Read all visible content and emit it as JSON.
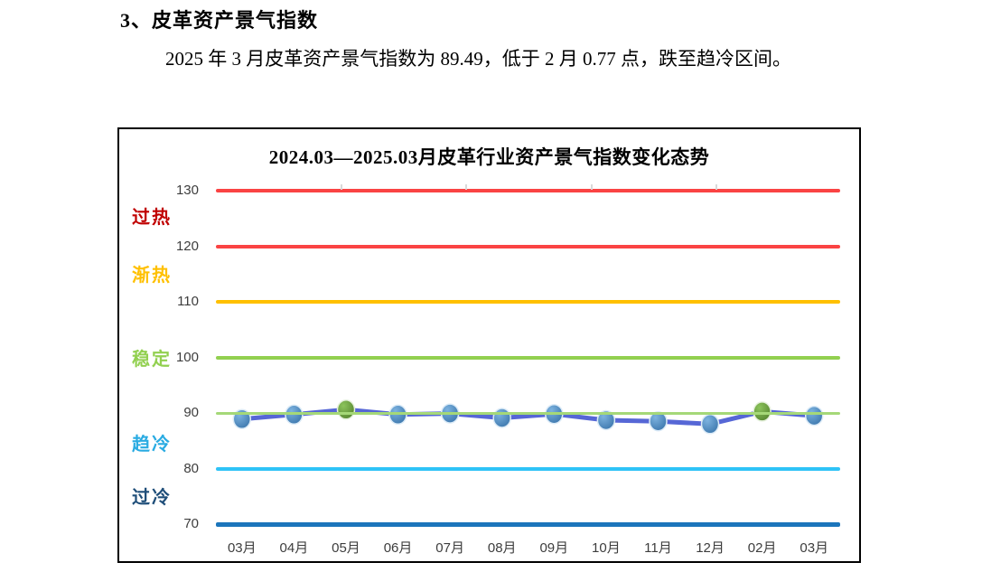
{
  "document": {
    "section_heading": "3、皮革资产景气指数",
    "paragraph": "2025 年 3 月皮革资产景气指数为 89.49，低于 2 月 0.77 点，跌至趋冷区间。"
  },
  "chart_data": {
    "type": "line",
    "title": "2024.03—2025.03月皮革行业资产景气指数变化态势",
    "categories": [
      "03月",
      "04月",
      "05月",
      "06月",
      "07月",
      "08月",
      "09月",
      "10月",
      "11月",
      "12月",
      "02月",
      "03月"
    ],
    "series": [
      {
        "name": "皮革行业资产景气指数",
        "values": [
          88.9,
          89.7,
          90.6,
          89.7,
          89.9,
          89.1,
          89.8,
          88.7,
          88.5,
          88.0,
          90.26,
          89.49
        ]
      }
    ],
    "highlight_indices": [
      2,
      10
    ],
    "ylim": [
      70,
      130
    ],
    "yticks": [
      70,
      80,
      90,
      100,
      110,
      120,
      130
    ],
    "grid": "horizontal threshold lines only",
    "legend_position": "none",
    "band_lines": [
      {
        "value": 130,
        "color": "#fa4343",
        "thickness": 4
      },
      {
        "value": 120,
        "color": "#fa4343",
        "thickness": 4
      },
      {
        "value": 110,
        "color": "#ffc000",
        "thickness": 4
      },
      {
        "value": 100,
        "color": "#92d050",
        "thickness": 4
      },
      {
        "value": 90,
        "color": "#a5d878",
        "thickness": 3
      },
      {
        "value": 80,
        "color": "#2fc3f7",
        "thickness": 4
      },
      {
        "value": 70,
        "color": "#1b75bb",
        "thickness": 5
      }
    ],
    "zone_labels": [
      {
        "text": "过热",
        "color": "#c00000",
        "value": 125.7
      },
      {
        "text": "渐热",
        "color": "#ffc000",
        "value": 115.4
      },
      {
        "text": "稳定",
        "color": "#92d050",
        "value": 100.3
      },
      {
        "text": "趋冷",
        "color": "#29abe2",
        "value": 85.0
      },
      {
        "text": "过冷",
        "color": "#1f4e79",
        "value": 75.3
      }
    ],
    "colors": {
      "series_line": "#5667d6",
      "marker": "#5b9bd5",
      "marker_highlight": "#70ad47",
      "axis_text": "#3d3d3d"
    }
  }
}
